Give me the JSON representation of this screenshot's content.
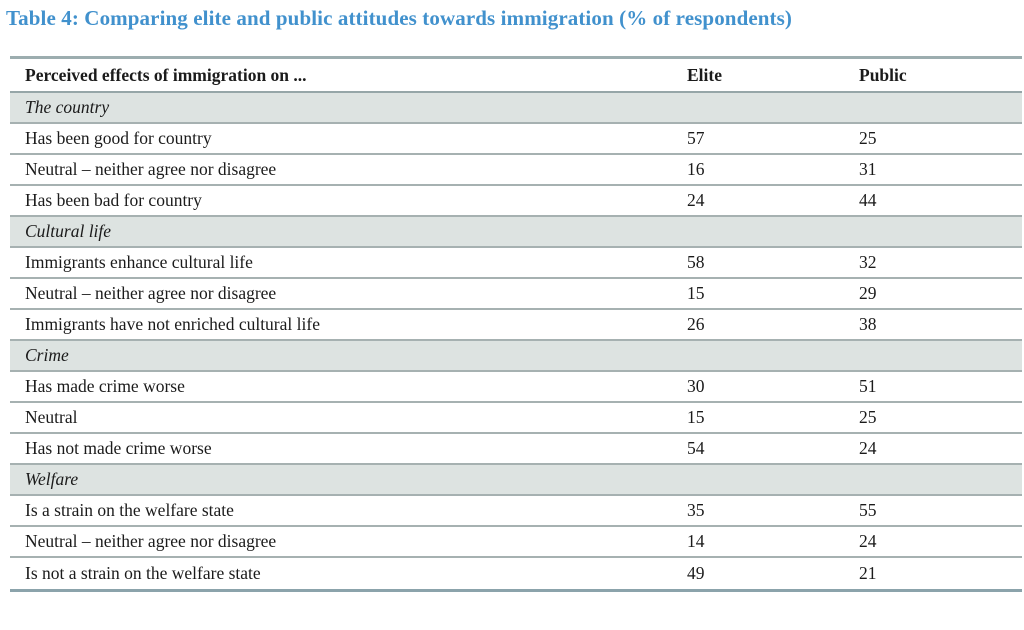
{
  "chart_data": {
    "type": "table",
    "title": "Table 4: Comparing elite and public attitudes towards immigration (% of respondents)",
    "columns": {
      "label": "Perceived effects of immigration on ...",
      "col1": "Elite",
      "col2": "Public"
    },
    "sections": [
      {
        "name": "The country",
        "rows": [
          {
            "label": "Has been good for country",
            "elite": "57",
            "public": "25"
          },
          {
            "label": "Neutral – neither agree nor disagree",
            "elite": "16",
            "public": "31"
          },
          {
            "label": "Has been bad for country",
            "elite": "24",
            "public": "44"
          }
        ]
      },
      {
        "name": "Cultural life",
        "rows": [
          {
            "label": "Immigrants enhance cultural life",
            "elite": "58",
            "public": "32"
          },
          {
            "label": "Neutral – neither agree nor disagree",
            "elite": "15",
            "public": "29"
          },
          {
            "label": "Immigrants have not enriched cultural life",
            "elite": "26",
            "public": "38"
          }
        ]
      },
      {
        "name": "Crime",
        "rows": [
          {
            "label": "Has made crime worse",
            "elite": "30",
            "public": "51"
          },
          {
            "label": "Neutral",
            "elite": "15",
            "public": "25"
          },
          {
            "label": "Has not made crime worse",
            "elite": "54",
            "public": "24"
          }
        ]
      },
      {
        "name": "Welfare",
        "rows": [
          {
            "label": "Is a strain on the welfare state",
            "elite": "35",
            "public": "55"
          },
          {
            "label": "Neutral – neither agree nor disagree",
            "elite": "14",
            "public": "24"
          },
          {
            "label": "Is not a strain on the welfare state",
            "elite": "49",
            "public": "21"
          }
        ]
      }
    ],
    "layout": {
      "units": "% of respondents",
      "grid": "horizontal rules between all rows",
      "section_header_background": true
    }
  },
  "colors": {
    "title_blue": "#4191cd",
    "text": "#1b1b1b",
    "section_background": "#dde3e1",
    "row_border": "#a6b1b1",
    "table_top_border": "#9cadaf",
    "table_bottom_border": "#8ba3ab"
  }
}
